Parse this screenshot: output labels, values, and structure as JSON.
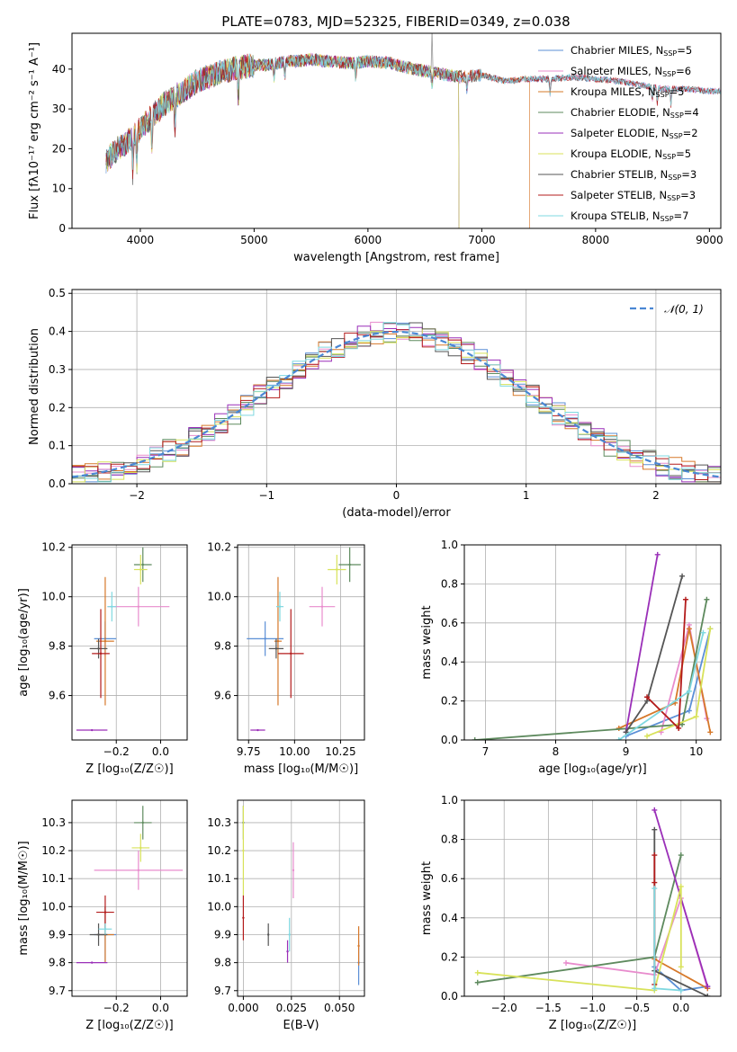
{
  "figure_title": "PLATE=0783, MJD=52325, FIBERID=0349, z=0.038",
  "colors": {
    "Chabrier MILES": "#5b8fd6",
    "Salpeter MILES": "#e88ccd",
    "Kroupa MILES": "#d6782a",
    "Chabrier ELODIE": "#5e8a5e",
    "Salpeter ELODIE": "#9a2fb8",
    "Kroupa ELODIE": "#d8e25a",
    "Chabrier STELIB": "#555555",
    "Salpeter STELIB": "#b31b1b",
    "Kroupa STELIB": "#7fd8e0",
    "normal_curve": "#4a87d4"
  },
  "chart_data": [
    {
      "id": "spectrum",
      "type": "line",
      "title": "",
      "xlabel": "wavelength [Angstrom, rest frame]",
      "ylabel": "Flux [fλ10⁻¹⁷ erg cm⁻² s⁻¹ A⁻¹]",
      "xlim": [
        3400,
        9100
      ],
      "ylim": [
        0,
        49
      ],
      "xticks": [
        4000,
        5000,
        6000,
        7000,
        8000,
        9000
      ],
      "yticks": [
        0,
        10,
        20,
        30,
        40
      ],
      "grid": false,
      "legend_position": "top-right",
      "x": [
        3700,
        3800,
        3900,
        4000,
        4100,
        4200,
        4300,
        4400,
        4500,
        4600,
        4700,
        4800,
        4900,
        5000,
        5100,
        5200,
        5300,
        5400,
        5500,
        5600,
        5700,
        5800,
        5900,
        6000,
        6200,
        6400,
        6600,
        6800,
        7000,
        7200,
        7400,
        7600,
        7800,
        8000,
        8200,
        8400,
        8600,
        8800,
        9000
      ],
      "y": [
        17,
        20,
        22,
        25,
        28,
        31,
        33,
        35,
        37,
        38,
        39,
        40,
        40.5,
        41,
        41,
        41.5,
        42,
        42,
        42.5,
        42,
        42,
        41.5,
        41.5,
        42,
        41.5,
        40,
        39,
        38,
        38.5,
        37,
        37.5,
        37.5,
        38,
        37.5,
        37,
        36,
        35,
        35,
        34.5
      ],
      "series": [
        {
          "name": "Chabrier MILES, N<sub>SSP</sub>=5",
          "end": 9100
        },
        {
          "name": "Salpeter MILES, N<sub>SSP</sub>=6",
          "end": 9100
        },
        {
          "name": "Kroupa MILES, N<sub>SSP</sub>=5",
          "end": 7420
        },
        {
          "name": "Chabrier ELODIE, N<sub>SSP</sub>=4",
          "end": 6800
        },
        {
          "name": "Salpeter ELODIE, N<sub>SSP</sub>=2",
          "end": 6800
        },
        {
          "name": "Kroupa ELODIE, N<sub>SSP</sub>=5",
          "end": 6800
        },
        {
          "name": "Chabrier STELIB, N<sub>SSP</sub>=3",
          "end": 9100
        },
        {
          "name": "Salpeter STELIB, N<sub>SSP</sub>=3",
          "end": 9100
        },
        {
          "name": "Kroupa STELIB, N<sub>SSP</sub>=7",
          "end": 9100
        }
      ]
    },
    {
      "id": "residuals",
      "type": "line",
      "title": "",
      "xlabel": "(data-model)/error",
      "ylabel": "Normed distribution",
      "xlim": [
        -2.5,
        2.5
      ],
      "ylim": [
        0,
        0.51
      ],
      "xticks": [
        -2,
        -1,
        0,
        1,
        2
      ],
      "yticks": [
        0.0,
        0.1,
        0.2,
        0.3,
        0.4,
        0.5
      ],
      "grid": true,
      "legend": "𝒩(0, 1)",
      "legend_position": "top-right",
      "bin_width": 0.1
    },
    {
      "id": "age-vs-Z",
      "type": "scatter",
      "title": "",
      "xlabel": "Z [log₁₀(Z/Z☉)]",
      "ylabel": "age  [log₁₀(age/yr)]",
      "xlim": [
        -0.4,
        0.12
      ],
      "ylim": [
        9.42,
        10.21
      ],
      "xticks": [
        -0.2,
        0.0
      ],
      "yticks": [
        9.6,
        9.8,
        10.0,
        10.2
      ],
      "grid": true,
      "points": [
        {
          "label": "Chabrier MILES",
          "x": -0.25,
          "y": 9.83,
          "xerr": 0.05,
          "yerr": 0.07
        },
        {
          "label": "Salpeter MILES",
          "x": -0.1,
          "y": 9.96,
          "xerr": 0.14,
          "yerr": 0.08
        },
        {
          "label": "Kroupa MILES",
          "x": -0.25,
          "y": 9.82,
          "xerr": 0.04,
          "yerr": 0.26
        },
        {
          "label": "Chabrier ELODIE",
          "x": -0.08,
          "y": 10.13,
          "xerr": 0.04,
          "yerr": 0.07
        },
        {
          "label": "Salpeter ELODIE",
          "x": -0.31,
          "y": 9.46,
          "xerr": 0.07,
          "yerr": 0.0
        },
        {
          "label": "Kroupa ELODIE",
          "x": -0.09,
          "y": 10.11,
          "xerr": 0.03,
          "yerr": 0.06
        },
        {
          "label": "Chabrier STELIB",
          "x": -0.28,
          "y": 9.79,
          "xerr": 0.04,
          "yerr": 0.04
        },
        {
          "label": "Salpeter STELIB",
          "x": -0.27,
          "y": 9.77,
          "xerr": 0.04,
          "yerr": 0.18
        },
        {
          "label": "Kroupa STELIB",
          "x": -0.22,
          "y": 9.96,
          "xerr": 0.02,
          "yerr": 0.06
        }
      ]
    },
    {
      "id": "age-vs-mass",
      "type": "scatter",
      "title": "",
      "xlabel": "mass [log₁₀(M/M☉)]",
      "ylabel": "",
      "xlim": [
        9.69,
        10.38
      ],
      "ylim": [
        9.42,
        10.21
      ],
      "xticks": [
        9.75,
        10.0,
        10.25
      ],
      "yticks": [
        9.6,
        9.8,
        10.0,
        10.2
      ],
      "grid": true,
      "points": [
        {
          "label": "Chabrier MILES",
          "x": 9.84,
          "y": 9.83,
          "xerr": 0.1,
          "yerr": 0.07
        },
        {
          "label": "Salpeter MILES",
          "x": 10.15,
          "y": 9.96,
          "xerr": 0.07,
          "yerr": 0.08
        },
        {
          "label": "Kroupa MILES",
          "x": 9.91,
          "y": 9.82,
          "xerr": 0.02,
          "yerr": 0.26
        },
        {
          "label": "Chabrier ELODIE",
          "x": 10.3,
          "y": 10.13,
          "xerr": 0.06,
          "yerr": 0.07
        },
        {
          "label": "Salpeter ELODIE",
          "x": 9.8,
          "y": 9.46,
          "xerr": 0.04,
          "yerr": 0.0
        },
        {
          "label": "Kroupa ELODIE",
          "x": 10.23,
          "y": 10.11,
          "xerr": 0.05,
          "yerr": 0.06
        },
        {
          "label": "Chabrier STELIB",
          "x": 9.9,
          "y": 9.79,
          "xerr": 0.04,
          "yerr": 0.04
        },
        {
          "label": "Salpeter STELIB",
          "x": 9.98,
          "y": 9.77,
          "xerr": 0.07,
          "yerr": 0.18
        },
        {
          "label": "Kroupa STELIB",
          "x": 9.92,
          "y": 9.96,
          "xerr": 0.02,
          "yerr": 0.06
        }
      ]
    },
    {
      "id": "weight-vs-age",
      "type": "line",
      "title": "",
      "xlabel": "age  [log₁₀(age/yr)]",
      "ylabel": "mass weight",
      "xlim": [
        6.7,
        10.35
      ],
      "ylim": [
        0,
        1
      ],
      "xticks": [
        7,
        8,
        9,
        10
      ],
      "yticks": [
        0.0,
        0.2,
        0.4,
        0.6,
        0.8,
        1.0
      ],
      "grid": true,
      "series": [
        {
          "label": "Chabrier MILES",
          "points": [
            [
              9.0,
              0.02
            ],
            [
              9.9,
              0.15
            ],
            [
              10.2,
              0.57
            ]
          ]
        },
        {
          "label": "Salpeter MILES",
          "points": [
            [
              9.5,
              0.04
            ],
            [
              9.9,
              0.59
            ],
            [
              10.15,
              0.11
            ]
          ]
        },
        {
          "label": "Kroupa MILES",
          "points": [
            [
              8.9,
              0.06
            ],
            [
              9.7,
              0.19
            ],
            [
              9.9,
              0.57
            ],
            [
              10.2,
              0.04
            ]
          ]
        },
        {
          "label": "Chabrier ELODIE",
          "points": [
            [
              6.85,
              0.0
            ],
            [
              9.8,
              0.08
            ],
            [
              10.15,
              0.72
            ]
          ]
        },
        {
          "label": "Salpeter ELODIE",
          "points": [
            [
              9.0,
              0.04
            ],
            [
              9.45,
              0.95
            ]
          ]
        },
        {
          "label": "Kroupa ELODIE",
          "points": [
            [
              9.3,
              0.02
            ],
            [
              10.0,
              0.12
            ],
            [
              10.2,
              0.57
            ]
          ]
        },
        {
          "label": "Chabrier STELIB",
          "points": [
            [
              9.0,
              0.04
            ],
            [
              9.3,
              0.2
            ],
            [
              9.8,
              0.84
            ]
          ]
        },
        {
          "label": "Salpeter STELIB",
          "points": [
            [
              9.3,
              0.22
            ],
            [
              9.75,
              0.06
            ],
            [
              9.85,
              0.72
            ]
          ]
        },
        {
          "label": "Kroupa STELIB",
          "points": [
            [
              8.9,
              0.0
            ],
            [
              9.9,
              0.25
            ],
            [
              10.1,
              0.55
            ]
          ]
        }
      ]
    },
    {
      "id": "mass-vs-Z",
      "type": "scatter",
      "title": "",
      "xlabel": "Z [log₁₀(Z/Z☉)]",
      "ylabel": "mass [log₁₀(M/M☉)]",
      "xlim": [
        -0.4,
        0.12
      ],
      "ylim": [
        9.68,
        10.38
      ],
      "xticks": [
        -0.2,
        0.0
      ],
      "yticks": [
        9.7,
        9.8,
        9.9,
        10.0,
        10.1,
        10.2,
        10.3
      ],
      "grid": true,
      "points": [
        {
          "label": "Chabrier MILES",
          "x": -0.25,
          "y": 9.9,
          "xerr": 0.05,
          "yerr": 0.1
        },
        {
          "label": "Salpeter MILES",
          "x": -0.1,
          "y": 10.13,
          "xerr": 0.2,
          "yerr": 0.07
        },
        {
          "label": "Kroupa MILES",
          "x": -0.25,
          "y": 9.9,
          "xerr": 0.04,
          "yerr": 0.1
        },
        {
          "label": "Chabrier ELODIE",
          "x": -0.08,
          "y": 10.3,
          "xerr": 0.04,
          "yerr": 0.06
        },
        {
          "label": "Salpeter ELODIE",
          "x": -0.31,
          "y": 9.8,
          "xerr": 0.07,
          "yerr": 0.0
        },
        {
          "label": "Kroupa ELODIE",
          "x": -0.09,
          "y": 10.21,
          "xerr": 0.04,
          "yerr": 0.05
        },
        {
          "label": "Chabrier STELIB",
          "x": -0.28,
          "y": 9.9,
          "xerr": 0.04,
          "yerr": 0.04
        },
        {
          "label": "Salpeter STELIB",
          "x": -0.25,
          "y": 9.98,
          "xerr": 0.04,
          "yerr": 0.06
        },
        {
          "label": "Kroupa STELIB",
          "x": -0.25,
          "y": 9.92,
          "xerr": 0.03,
          "yerr": 0.02
        }
      ]
    },
    {
      "id": "mass-vs-EBV",
      "type": "scatter",
      "title": "",
      "xlabel": "E(B-V)",
      "ylabel": "",
      "xlim": [
        -0.003,
        0.063
      ],
      "ylim": [
        9.68,
        10.38
      ],
      "xticks": [
        0.0,
        0.025,
        0.05
      ],
      "xticklabels": [
        "0.000",
        "0.025",
        "0.050"
      ],
      "yticks": [
        9.7,
        9.8,
        9.9,
        10.0,
        10.1,
        10.2,
        10.3
      ],
      "grid": true,
      "points": [
        {
          "label": "Chabrier MILES",
          "x": 0.06,
          "y": 9.8,
          "xerr": 0,
          "yerr": 0.08
        },
        {
          "label": "Salpeter MILES",
          "x": 0.026,
          "y": 10.13,
          "xerr": 0,
          "yerr": 0.1
        },
        {
          "label": "Kroupa MILES",
          "x": 0.06,
          "y": 9.86,
          "xerr": 0,
          "yerr": 0.07
        },
        {
          "label": "Chabrier ELODIE",
          "x": 0.0,
          "y": 10.3,
          "xerr": 0,
          "yerr": 0.06
        },
        {
          "label": "Salpeter ELODIE",
          "x": 0.023,
          "y": 9.84,
          "xerr": 0,
          "yerr": 0.04
        },
        {
          "label": "Kroupa ELODIE",
          "x": 0.0,
          "y": 10.2,
          "xerr": 0,
          "yerr": 0.16
        },
        {
          "label": "Chabrier STELIB",
          "x": 0.013,
          "y": 9.9,
          "xerr": 0,
          "yerr": 0.04
        },
        {
          "label": "Salpeter STELIB",
          "x": 0.0,
          "y": 9.96,
          "xerr": 0,
          "yerr": 0.08
        },
        {
          "label": "Kroupa STELIB",
          "x": 0.024,
          "y": 9.9,
          "xerr": 0,
          "yerr": 0.06
        }
      ]
    },
    {
      "id": "weight-vs-Z",
      "type": "line",
      "title": "",
      "xlabel": "Z [log₁₀(Z/Z☉)]",
      "ylabel": "mass weight",
      "xlim": [
        -2.45,
        0.45
      ],
      "ylim": [
        0,
        1
      ],
      "xticks": [
        -2.0,
        -1.5,
        -1.0,
        -0.5,
        0.0
      ],
      "yticks": [
        0.0,
        0.2,
        0.4,
        0.6,
        0.8,
        1.0
      ],
      "grid": true,
      "series": [
        {
          "label": "Chabrier MILES",
          "points": [
            [
              -0.3,
              0.15
            ],
            [
              0.0,
              0.03
            ],
            [
              0.3,
              0.05
            ]
          ]
        },
        {
          "label": "Salpeter MILES",
          "points": [
            [
              -1.3,
              0.17
            ],
            [
              -0.3,
              0.11
            ],
            [
              0.0,
              0.5
            ],
            [
              0.3,
              0.04
            ]
          ]
        },
        {
          "label": "Kroupa MILES",
          "points": [
            [
              -0.3,
              0.19
            ],
            [
              0.3,
              0.04
            ]
          ]
        },
        {
          "label": "Chabrier ELODIE",
          "points": [
            [
              -2.3,
              0.07
            ],
            [
              -0.3,
              0.2
            ],
            [
              0.0,
              0.72
            ]
          ]
        },
        {
          "label": "Salpeter ELODIE",
          "points": [
            [
              -0.3,
              0.95
            ],
            [
              0.3,
              0.05
            ]
          ]
        },
        {
          "label": "Kroupa ELODIE",
          "points": [
            [
              -2.3,
              0.12
            ],
            [
              -0.3,
              0.03
            ],
            [
              0.0,
              0.56
            ],
            [
              0.0,
              0.15
            ]
          ]
        },
        {
          "label": "Chabrier STELIB",
          "points": [
            [
              -0.3,
              0.85
            ],
            [
              -0.3,
              0.13
            ],
            [
              0.3,
              0.0
            ]
          ]
        },
        {
          "label": "Salpeter STELIB",
          "points": [
            [
              -0.3,
              0.72
            ],
            [
              -0.3,
              0.06
            ],
            [
              -0.3,
              0.58
            ]
          ]
        },
        {
          "label": "Kroupa STELIB",
          "points": [
            [
              -0.3,
              0.55
            ],
            [
              -0.3,
              0.04
            ],
            [
              0.0,
              0.03
            ]
          ]
        }
      ]
    }
  ]
}
